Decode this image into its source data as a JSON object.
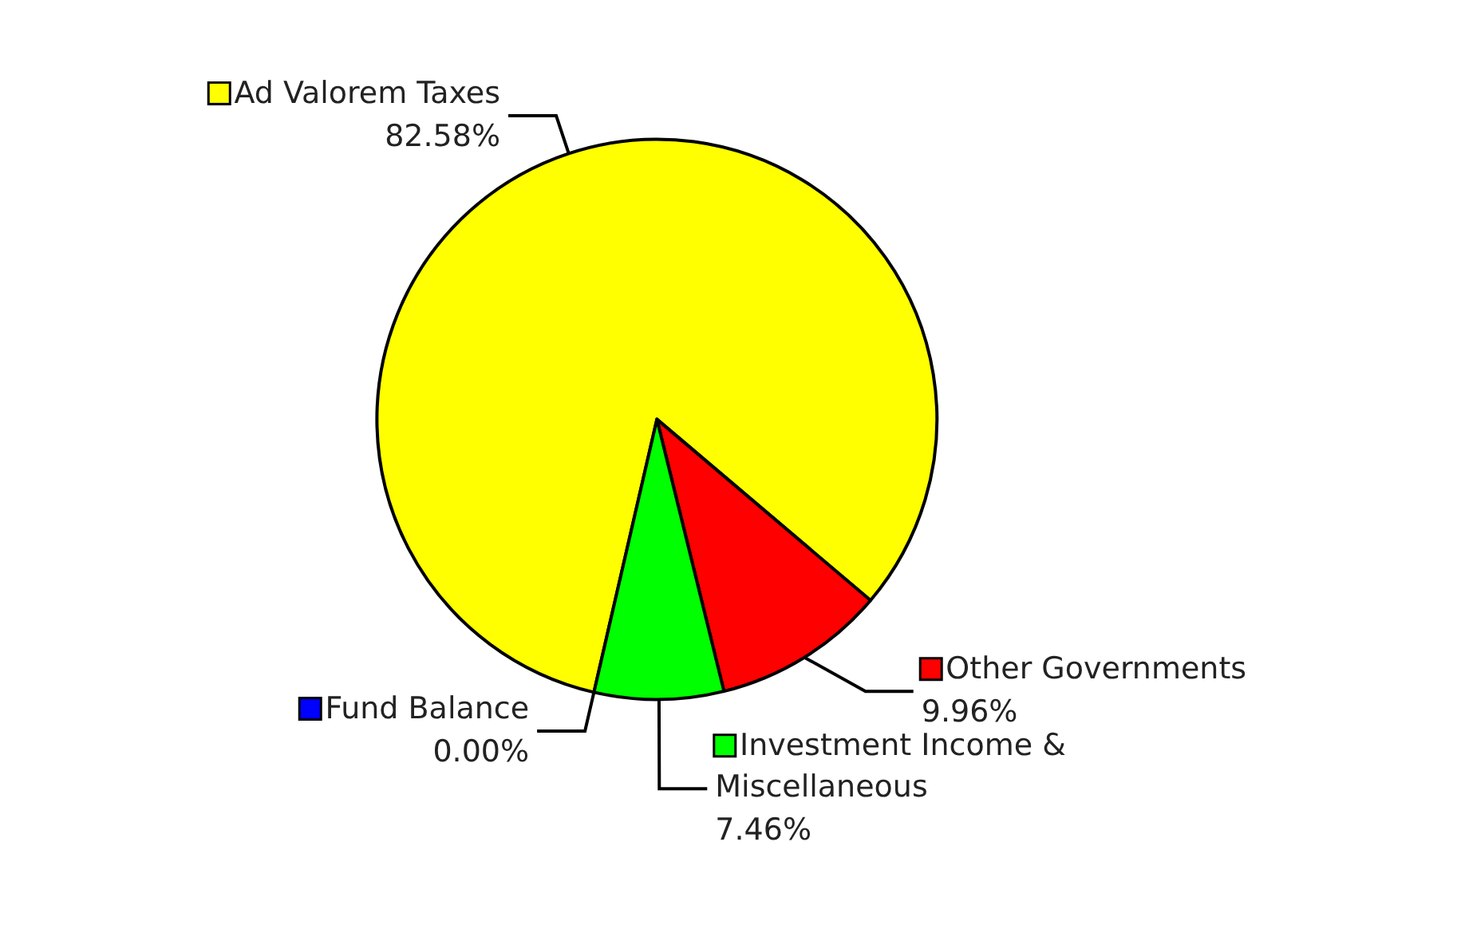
{
  "chart_data": {
    "type": "pie",
    "categories": [
      "Ad Valorem Taxes",
      "Other Governments",
      "Investment Income & Miscellaneous",
      "Fund Balance"
    ],
    "values": [
      82.58,
      9.96,
      7.46,
      0
    ],
    "value_labels": [
      "82.58%",
      "9.96%",
      "7.46%",
      "0.00%"
    ],
    "colors": [
      "#ffff00",
      "#ff0000",
      "#00ff00",
      "#0000ff"
    ],
    "legend": true
  }
}
